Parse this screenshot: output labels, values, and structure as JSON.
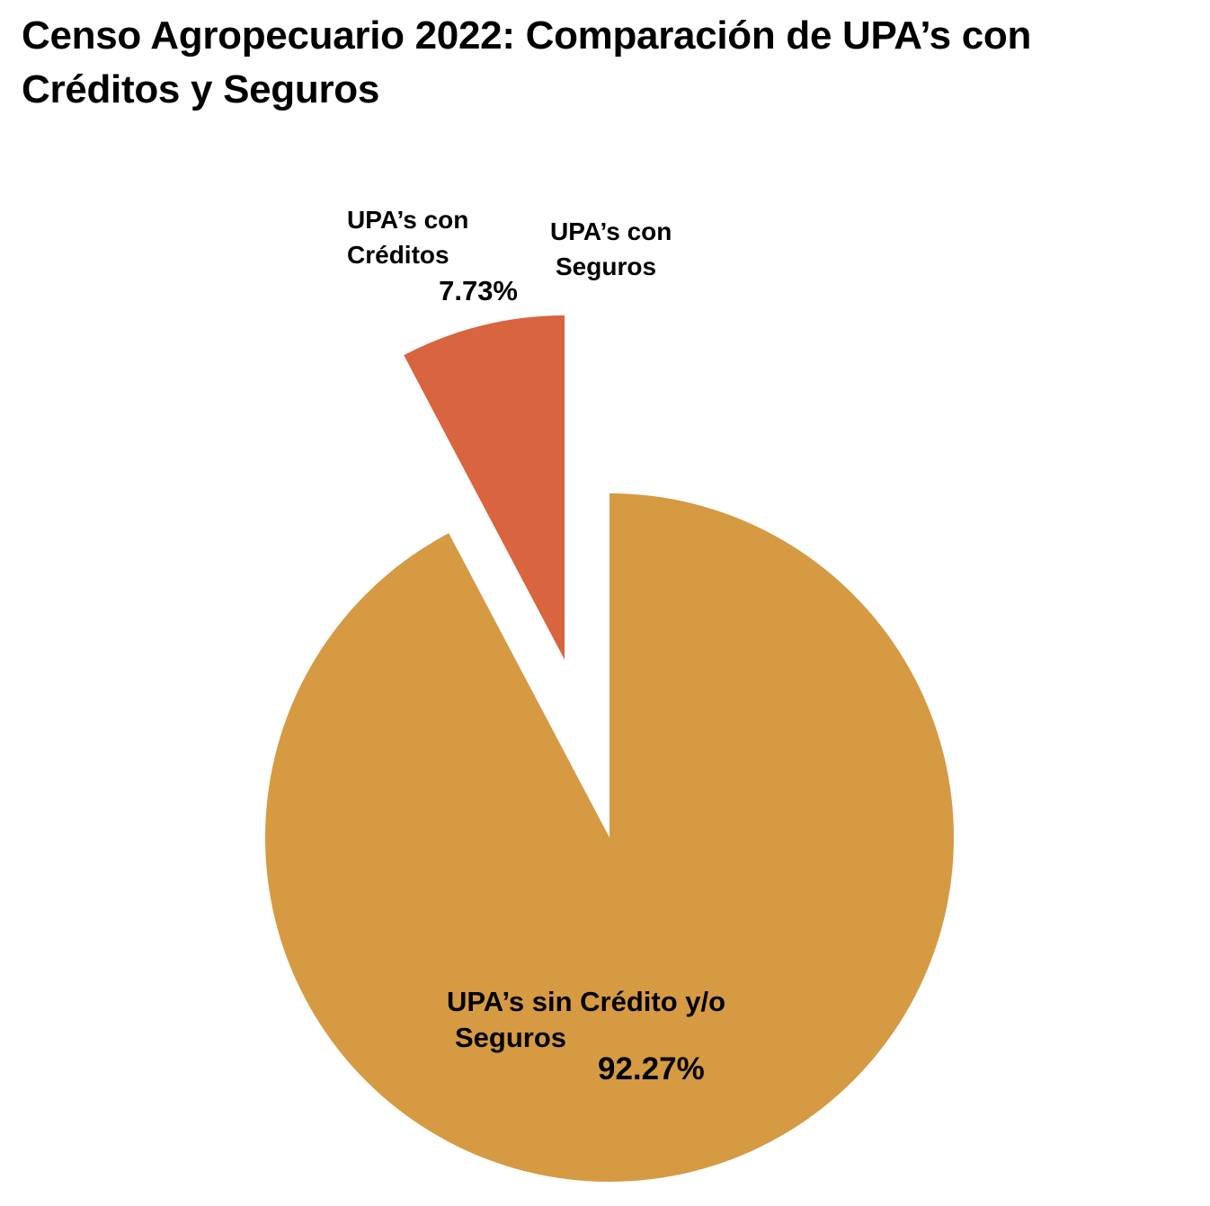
{
  "chart_data": {
    "type": "pie",
    "title": "Censo Agropecuario 2022: Comparación de UPA’s con Créditos y Seguros",
    "slices": [
      {
        "label": "UPA’s sin Crédito y/o Seguros",
        "value": 92.27,
        "value_label": "92.27%",
        "color": "#D69A43",
        "exploded": false
      },
      {
        "label": "UPA’s con Créditos",
        "value": 7.73,
        "value_label": "7.73%",
        "color": "#D96440",
        "exploded": true
      },
      {
        "label": "UPA’s con Seguros",
        "value": null,
        "value_label": "",
        "color": "",
        "exploded": false
      }
    ],
    "legend": "none"
  }
}
